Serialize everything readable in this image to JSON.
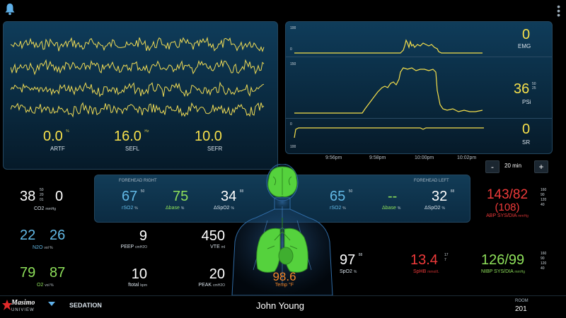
{
  "eeg": {
    "artf": {
      "value": "0.0",
      "units": "%",
      "label": "ARTF"
    },
    "sefl": {
      "value": "16.0",
      "units": "Hz",
      "label": "SEFL"
    },
    "sefr": {
      "value": "10.0",
      "label": "SEFR"
    }
  },
  "trends": {
    "emg": {
      "scale_top": "100",
      "scale_bottom": "0",
      "value": "0",
      "label": "EMG"
    },
    "psi": {
      "scale_top": "150",
      "value": "36",
      "label": "PSi",
      "alarm_high": "50",
      "alarm_low": "25"
    },
    "sr": {
      "scale_top": "0",
      "scale_bottom": "100",
      "value": "0",
      "label": "SR"
    },
    "times": [
      "9:56pm",
      "9:58pm",
      "10:00pm",
      "10:02pm"
    ],
    "zoom": {
      "minus": "-",
      "value": "20 min",
      "plus": "+"
    }
  },
  "left": {
    "co2": {
      "value": "38",
      "alarms": [
        "50",
        "20",
        "01"
      ],
      "value2": "0",
      "label": "CO2",
      "unit": "mmHg"
    },
    "n2o": {
      "value": "22",
      "value2": "26",
      "label": "N2O",
      "unit": "vol %"
    },
    "o2": {
      "value": "79",
      "value2": "87",
      "label": "O2",
      "unit": "vol %"
    }
  },
  "forehead": {
    "right_header": "FOREHEAD RIGHT",
    "left_header": "FOREHEAD LEFT",
    "right": {
      "rso2": "67",
      "rso2_alarm": "50",
      "base": "75",
      "dspo2": "34",
      "dspo2_alarm": "88"
    },
    "left": {
      "rso2": "65",
      "rso2_alarm": "50",
      "base": "--",
      "dspo2": "32",
      "dspo2_alarm": "88"
    },
    "labels": {
      "rso2": "rSO2",
      "base": "Δbase",
      "dspo2": "ΔSpO2",
      "pct": "%"
    }
  },
  "vent": {
    "peep": {
      "value": "9",
      "label": "PEEP",
      "unit": "cmH2O"
    },
    "vte": {
      "value": "450",
      "label": "VTE",
      "unit": "ml"
    },
    "ftotal": {
      "value": "10",
      "label": "ftotal",
      "unit": "bpm"
    },
    "peak": {
      "value": "20",
      "label": "PEAK",
      "unit": "cmH2O"
    }
  },
  "temp": {
    "value": "98.6",
    "label": "Temp °F"
  },
  "right": {
    "abp": {
      "value": "143/82",
      "mean": "(108)",
      "label": "ABP SYS/DIA",
      "unit": "mmHg",
      "alarms": [
        "160",
        "90",
        "120",
        "40"
      ]
    },
    "spo2": {
      "value": "97",
      "alarm": "88",
      "label": "SpO2",
      "unit": "%"
    },
    "sphb": {
      "value": "13.4",
      "alarms": [
        "17",
        "7"
      ],
      "label": "SpHB",
      "unit": "mmol/L"
    },
    "nibp": {
      "value": "126/99",
      "label": "NIBP SYS/DIA",
      "unit": "mmHg",
      "alarms": [
        "160",
        "90",
        "120",
        "40"
      ]
    }
  },
  "bottom": {
    "brand": "Masimo",
    "brand_sub": "UNIVIEW",
    "mode": "SEDATION",
    "patient": "John Young",
    "room_label": "ROOM",
    "room": "201"
  },
  "colors": {
    "eeg_trace": "#f0dc55",
    "trend_trace": "#f6e04b",
    "abp": "#ef3a3a",
    "nibp": "#8ee05a",
    "spo2_tissue": "#62b9e6"
  }
}
